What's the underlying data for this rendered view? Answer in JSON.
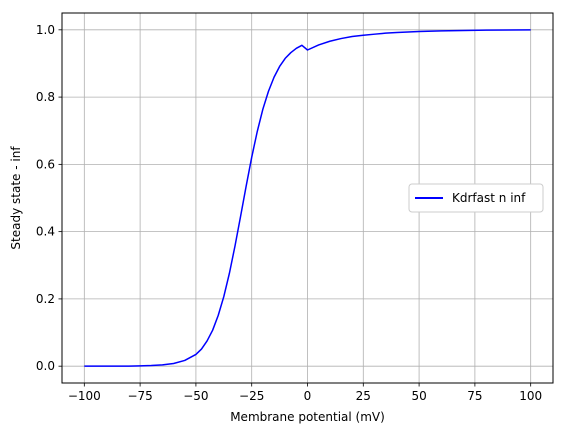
{
  "chart_data": {
    "type": "line",
    "title": "",
    "xlabel": "Membrane potential (mV)",
    "ylabel": "Steady state - inf",
    "xlim": [
      -110,
      110
    ],
    "ylim": [
      -0.05,
      1.05
    ],
    "xticks": [
      -100,
      -75,
      -50,
      -25,
      0,
      25,
      50,
      75,
      100
    ],
    "xtick_labels": [
      "−100",
      "−75",
      "−50",
      "−25",
      "0",
      "25",
      "50",
      "75",
      "100"
    ],
    "yticks": [
      0.0,
      0.2,
      0.4,
      0.6,
      0.8,
      1.0
    ],
    "ytick_labels": [
      "0.0",
      "0.2",
      "0.4",
      "0.6",
      "0.8",
      "1.0"
    ],
    "grid": true,
    "legend_position": "center-right",
    "series": [
      {
        "name": "Kdrfast n inf",
        "color": "#0000ff",
        "x": [
          -100,
          -90,
          -80,
          -75,
          -70,
          -65,
          -60,
          -55,
          -50,
          -47.5,
          -45,
          -42.5,
          -40,
          -37.5,
          -35,
          -32.5,
          -30,
          -27.5,
          -25,
          -22.5,
          -20,
          -17.5,
          -15,
          -12.5,
          -10,
          -7.5,
          -5,
          -2.5,
          0,
          5,
          10,
          15,
          20,
          25,
          30,
          35,
          40,
          50,
          60,
          70,
          80,
          90,
          100
        ],
        "y": [
          0.0,
          0.0,
          0.0,
          0.001,
          0.002,
          0.004,
          0.008,
          0.017,
          0.035,
          0.051,
          0.075,
          0.107,
          0.151,
          0.207,
          0.276,
          0.357,
          0.445,
          0.535,
          0.621,
          0.698,
          0.764,
          0.817,
          0.859,
          0.891,
          0.915,
          0.932,
          0.945,
          0.954,
          0.94,
          0.955,
          0.966,
          0.974,
          0.98,
          0.984,
          0.987,
          0.99,
          0.992,
          0.995,
          0.997,
          0.998,
          0.999,
          0.9995,
          1.0
        ]
      }
    ]
  }
}
